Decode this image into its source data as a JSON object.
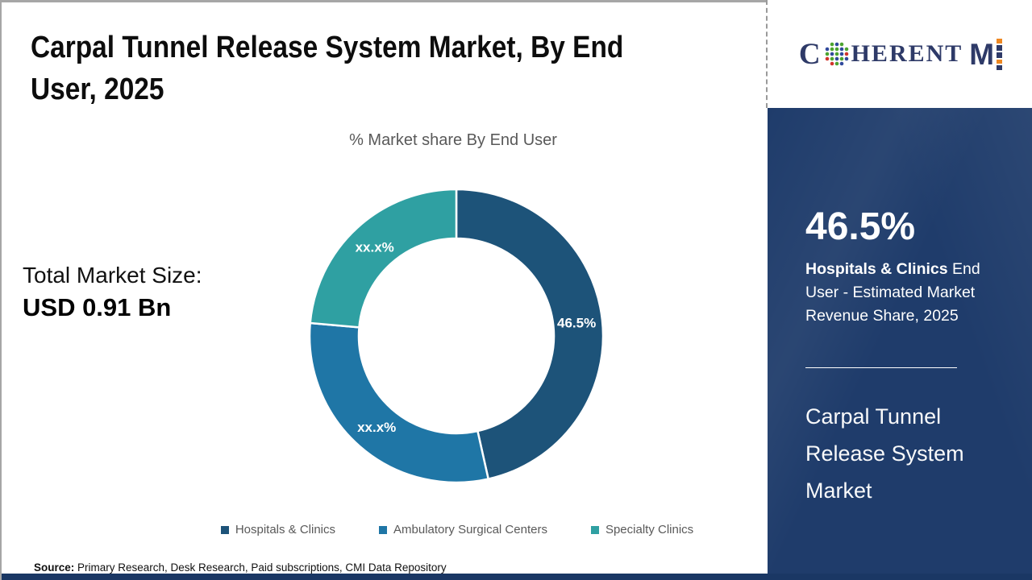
{
  "header": {
    "title": "Carpal Tunnel Release System Market, By End User, 2025"
  },
  "stats": {
    "total_label": "Total Market Size:",
    "total_value": "USD 0.91 Bn"
  },
  "chart_data": {
    "type": "pie",
    "variant": "donut",
    "title": "% Market share By End User",
    "categories": [
      "Hospitals & Clinics",
      "Ambulatory Surgical Centers",
      "Specialty Clinics"
    ],
    "values": [
      46.5,
      29.9,
      23.6
    ],
    "value_labels": [
      "46.5%",
      "xx.x%",
      "xx.x%"
    ],
    "colors": [
      "#1d5379",
      "#1f76a6",
      "#2fa0a2"
    ],
    "legend_position": "bottom",
    "start_angle_deg": 0,
    "inner_radius_ratio": 0.665
  },
  "sidebar": {
    "stat_value": "46.5%",
    "stat_bold": "Hospitals & Clinics",
    "stat_rest": " End User - Estimated Market Revenue Share, 2025",
    "market_name": "Carpal Tunnel Release System Market"
  },
  "logo": {
    "part_c": "C",
    "part_rest": "HERENT",
    "part_m": "M"
  },
  "footer": {
    "source_label": "Source:",
    "source_text": " Primary Research, Desk Research, Paid subscriptions, CMI Data Repository"
  },
  "theme": {
    "sidebar_bg": "#1f3c6b",
    "bottom_strip": "#1a3764",
    "logo_navy": "#2e3a68",
    "logo_orange": "#ee8822",
    "muted_text": "#595959",
    "label_text": "#ffffff"
  }
}
